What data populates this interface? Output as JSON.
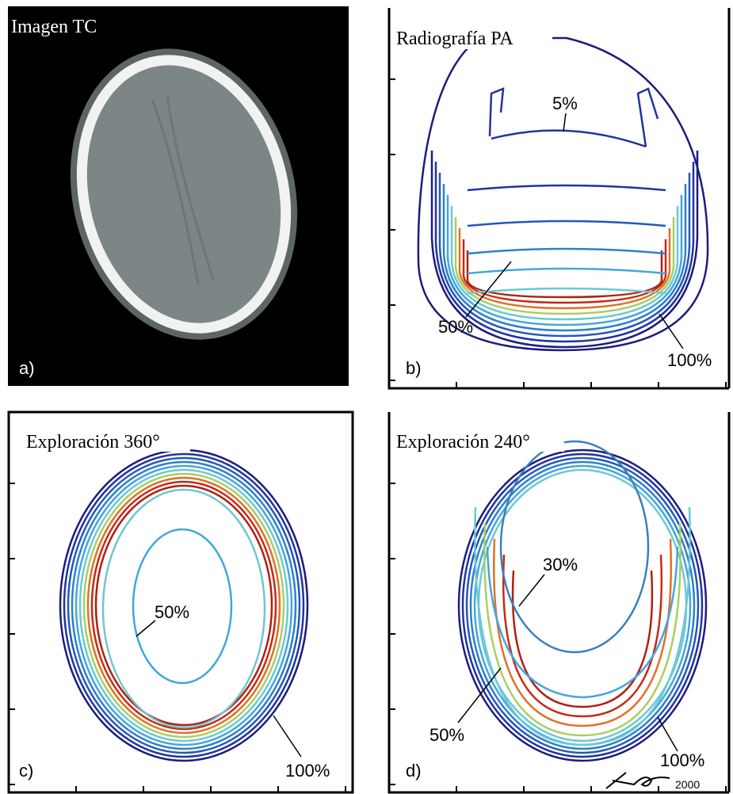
{
  "panels": [
    {
      "title": "Imagen TC",
      "letter": "a)"
    },
    {
      "title": "Radiografía PA",
      "letter": "b)",
      "labels": [
        "5%",
        "50%",
        "100%"
      ]
    },
    {
      "title": "Exploración 360°",
      "letter": "c)",
      "labels": [
        "50%",
        "100%"
      ]
    },
    {
      "title": "Exploración 240°",
      "letter": "d)",
      "labels": [
        "30%",
        "50%",
        "100%"
      ],
      "signature": "2000"
    }
  ]
}
